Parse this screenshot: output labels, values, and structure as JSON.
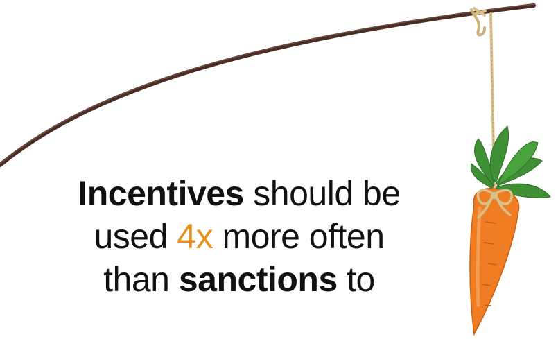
{
  "caption": {
    "line1": {
      "bold": "Incentives",
      "rest": " should be"
    },
    "line2": {
      "before": "used ",
      "accent": "4x",
      "after": " more often"
    },
    "line3": {
      "before": "than ",
      "bold": "sanctions",
      "after": " to"
    }
  },
  "colors": {
    "text": "#111111",
    "accent": "#e5921c",
    "stick": "#4a2e26",
    "string": "#d8c08a",
    "carrot": "#ef7d24",
    "leaves": "#3f8f35"
  },
  "icons": {
    "stick": "stick-icon",
    "string": "string-icon",
    "carrot": "carrot-icon"
  }
}
